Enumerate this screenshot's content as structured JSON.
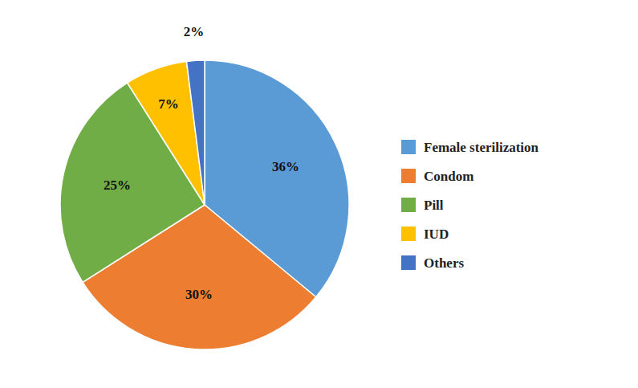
{
  "chart_data": {
    "type": "pie",
    "categories": [
      "Female sterilization",
      "Condom",
      "Pill",
      "IUD",
      "Others"
    ],
    "values": [
      36,
      30,
      25,
      7,
      2
    ],
    "value_labels": [
      "36%",
      "30%",
      "25%",
      "7%",
      "2%"
    ],
    "colors": [
      "#5B9BD5",
      "#ED7D31",
      "#70AD47",
      "#FFC000",
      "#4472C4"
    ],
    "data_labels": true,
    "legend": "right"
  }
}
